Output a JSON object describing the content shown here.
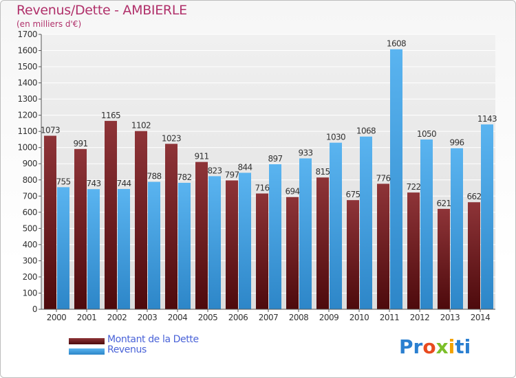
{
  "chart_data": {
    "type": "bar",
    "title": "Revenus/Dette - AMBIERLE",
    "subtitle": "(en milliers d'€)",
    "categories": [
      "2000",
      "2001",
      "2002",
      "2003",
      "2004",
      "2005",
      "2006",
      "2007",
      "2008",
      "2009",
      "2010",
      "2011",
      "2012",
      "2013",
      "2014"
    ],
    "series": [
      {
        "name": "Montant de la Dette",
        "color": "#7a1f22",
        "values": [
          1073,
          991,
          1165,
          1102,
          1023,
          911,
          797,
          716,
          694,
          815,
          675,
          776,
          722,
          621,
          662
        ]
      },
      {
        "name": "Revenus",
        "color": "#4aa6e6",
        "values": [
          755,
          743,
          744,
          788,
          782,
          823,
          844,
          897,
          933,
          1030,
          1068,
          1608,
          1050,
          996,
          1143
        ]
      }
    ],
    "ylim": [
      0,
      1700
    ],
    "ytick_step": 100,
    "grid": true,
    "legend_placement": "bottom-left"
  },
  "logo_text": [
    "Pr",
    "o",
    "x",
    "i",
    "ti"
  ]
}
